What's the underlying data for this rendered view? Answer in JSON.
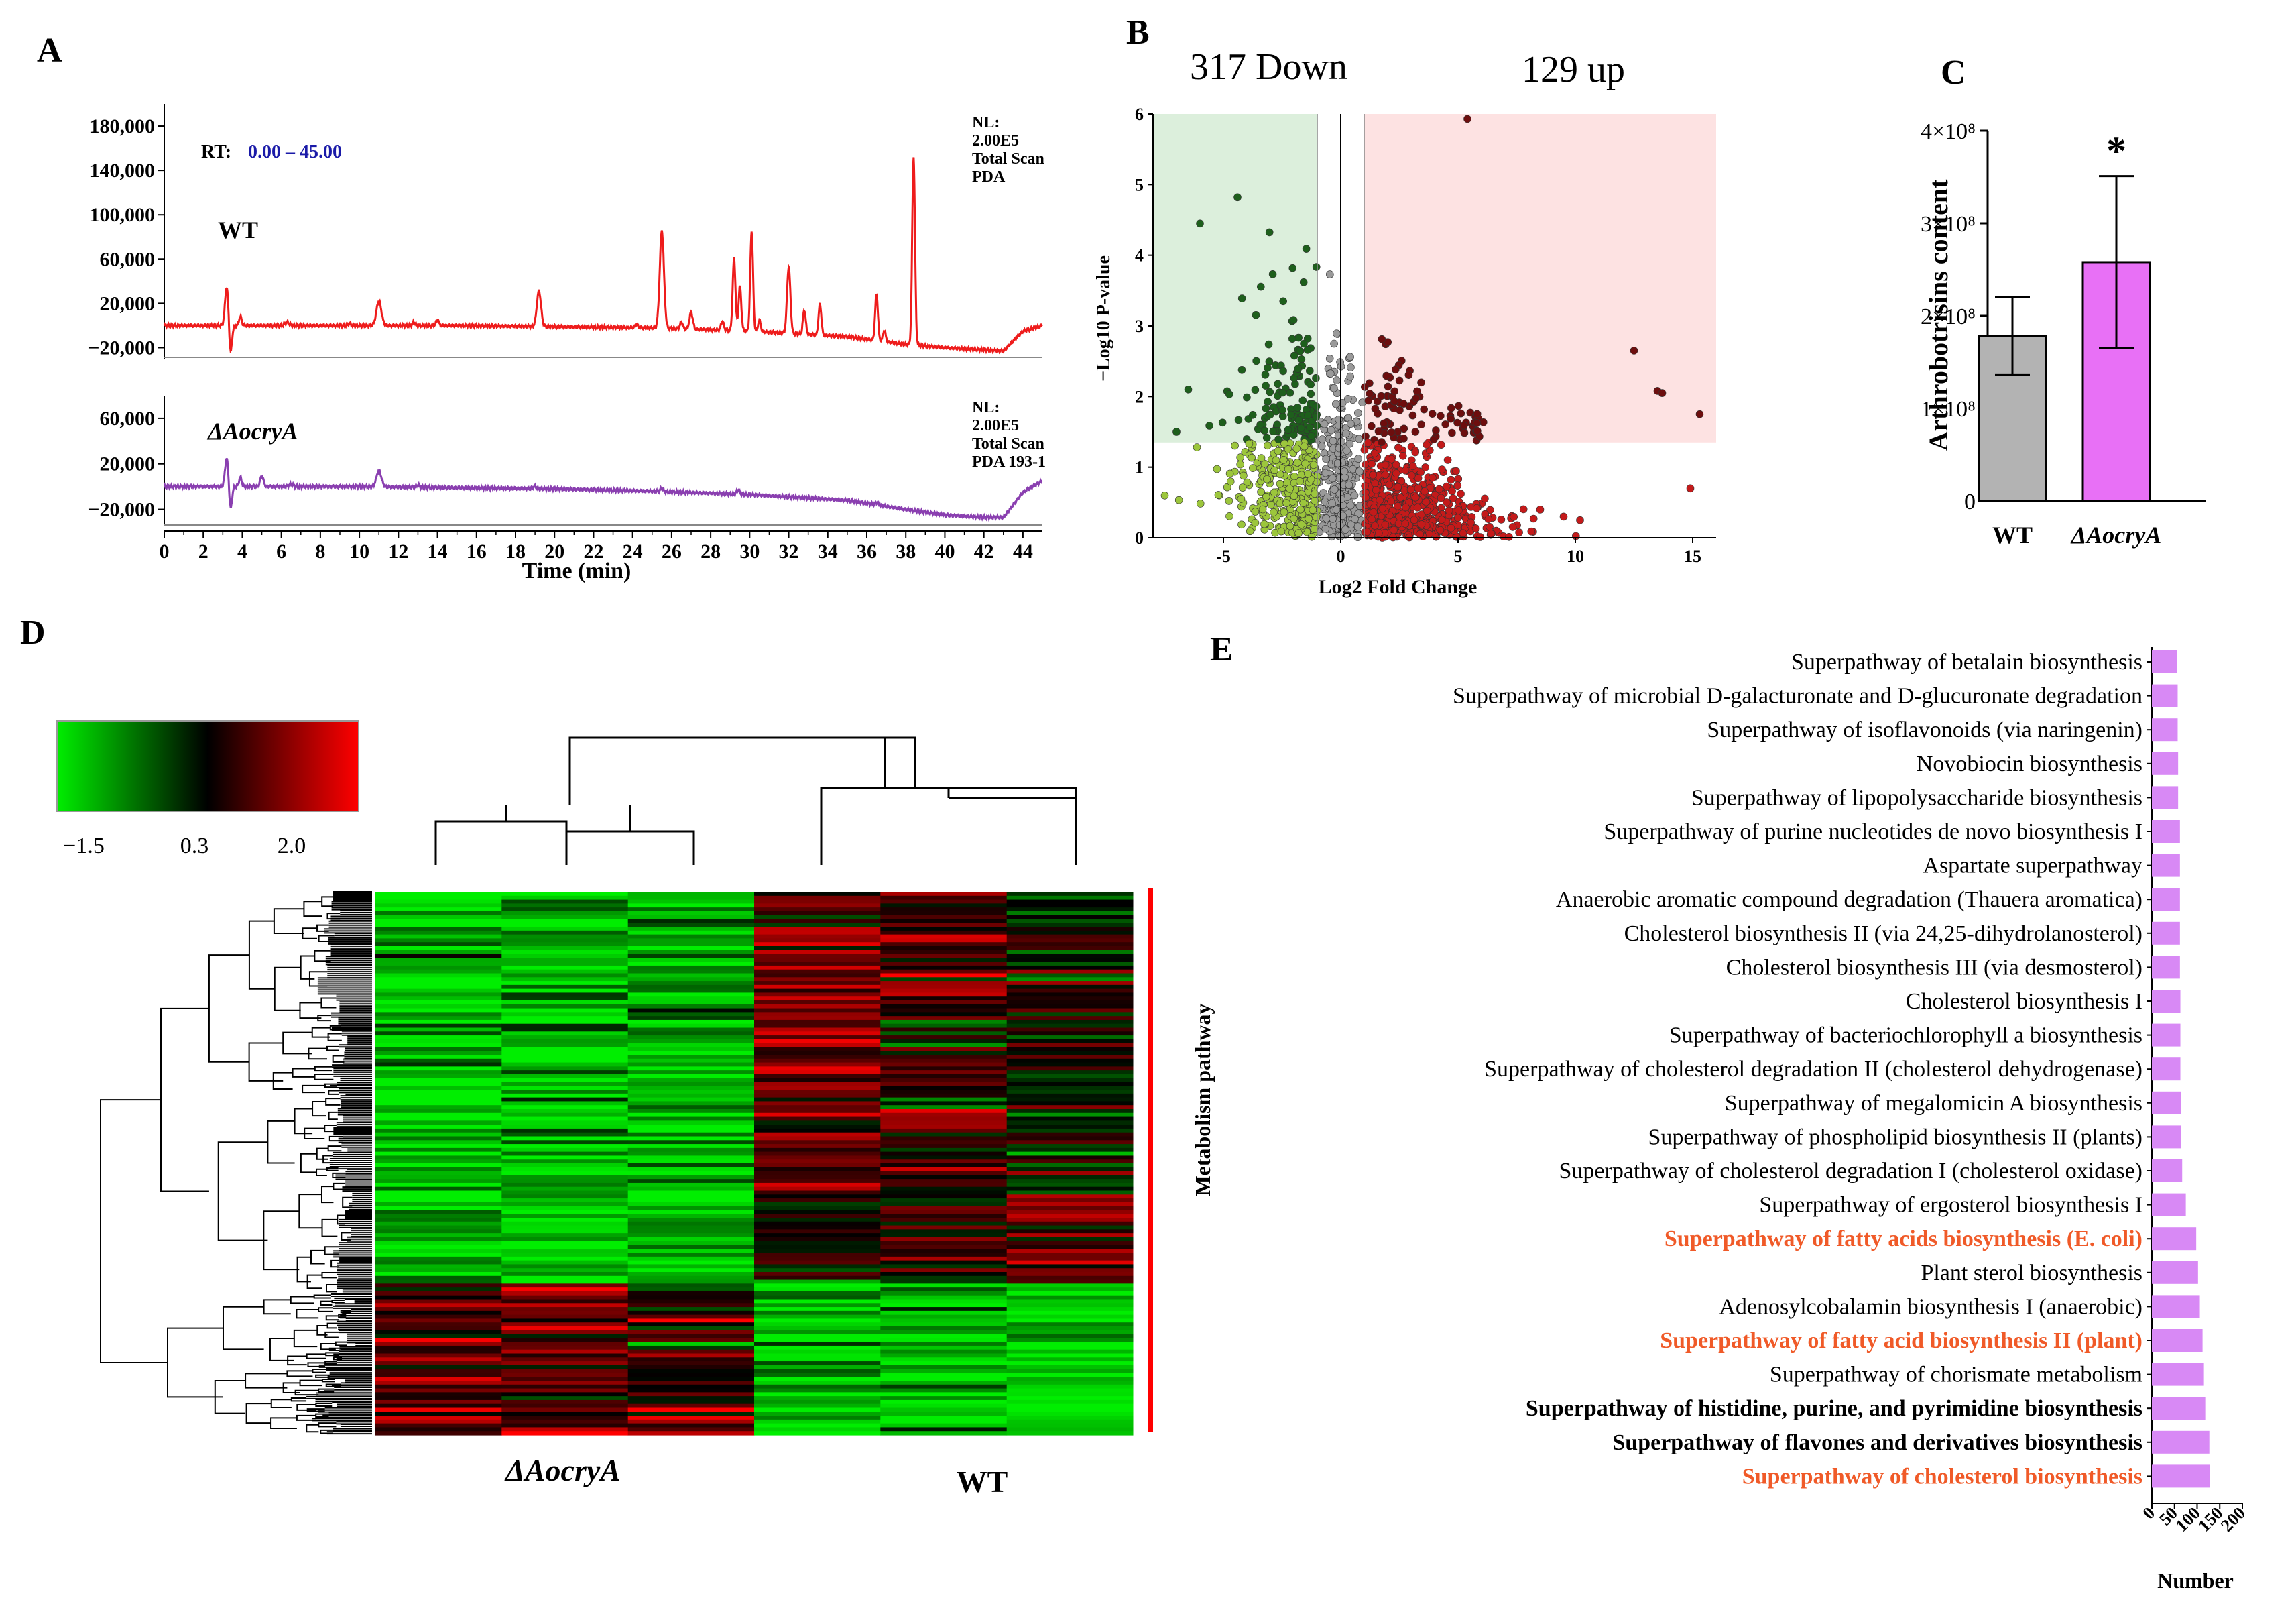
{
  "figure_title": "Multi-panel figure: metabolite profiling of WT and ΔAocryA",
  "panels": {
    "a": "A",
    "b": "B",
    "c": "C",
    "d": "D",
    "e": "E"
  },
  "colors": {
    "wt_trace": "#ee1c1c",
    "mutant_trace": "#8a3fb0",
    "up_point": "#c41a1a",
    "up_sig_point": "#6d0e0e",
    "down_point": "#9cc63c",
    "down_sig_point": "#1e5f1c",
    "ns_point": "#9a9a9a",
    "up_zone": "#fde2e2",
    "down_zone": "#dcefdc",
    "bar_wt": "#b3b3b3",
    "bar_mutant": "#e870f6",
    "bar_e": "#d889f5",
    "highlight_text": "#f05a28",
    "heat_low": "#00ee00",
    "heat_mid": "#000000",
    "heat_high": "#ff0000"
  },
  "chart_data": [
    {
      "id": "A",
      "type": "line",
      "title": "",
      "xlabel": "Time (min)",
      "ylabel": "",
      "xlim": [
        0,
        45
      ],
      "x_ticks": [
        0,
        2,
        4,
        6,
        8,
        10,
        12,
        14,
        16,
        18,
        20,
        22,
        24,
        26,
        28,
        30,
        32,
        34,
        36,
        38,
        40,
        42,
        44
      ],
      "rt_label": "RT:",
      "rt_range": "0.00 – 45.00",
      "series": [
        {
          "name": "WT",
          "ylim": [
            -30000,
            200000
          ],
          "y_ticks": [
            "180,000",
            "140,000",
            "100,000",
            "60,000",
            "20,000",
            "−20,000"
          ],
          "y_tick_values": [
            180000,
            140000,
            100000,
            60000,
            20000,
            -20000
          ],
          "note_lines": [
            "NL:",
            "2.00E5",
            "Total Scan",
            "PDA"
          ],
          "baseline": [
            [
              0,
              0
            ],
            [
              3,
              0
            ],
            [
              10,
              0
            ],
            [
              15,
              0
            ],
            [
              20,
              -1000
            ],
            [
              25,
              -2000
            ],
            [
              30,
              -5000
            ],
            [
              35,
              -10000
            ],
            [
              38,
              -17000
            ],
            [
              40,
              -20000
            ],
            [
              42,
              -22000
            ],
            [
              43,
              -23000
            ],
            [
              44,
              -5000
            ],
            [
              45,
              0
            ]
          ],
          "peaks": [
            [
              3.2,
              35000,
              0.12
            ],
            [
              3.4,
              -25000,
              0.1
            ],
            [
              3.9,
              8000,
              0.1
            ],
            [
              6.3,
              3000,
              0.15
            ],
            [
              9.5,
              2000,
              0.1
            ],
            [
              11,
              22000,
              0.18
            ],
            [
              12.8,
              3000,
              0.1
            ],
            [
              14,
              5000,
              0.1
            ],
            [
              19.2,
              32000,
              0.15
            ],
            [
              24.2,
              3000,
              0.1
            ],
            [
              25.5,
              88000,
              0.15
            ],
            [
              26.5,
              6000,
              0.1
            ],
            [
              27,
              15000,
              0.12
            ],
            [
              28.6,
              8000,
              0.1
            ],
            [
              29.2,
              65000,
              0.1
            ],
            [
              29.5,
              40000,
              0.1
            ],
            [
              30.1,
              90000,
              0.1
            ],
            [
              30.5,
              10000,
              0.1
            ],
            [
              32,
              60000,
              0.12
            ],
            [
              32.8,
              22000,
              0.1
            ],
            [
              33.6,
              28000,
              0.1
            ],
            [
              36.5,
              42000,
              0.1
            ],
            [
              36.9,
              10000,
              0.1
            ],
            [
              38.4,
              170000,
              0.1
            ]
          ]
        },
        {
          "name": "ΔAocryA",
          "ylim": [
            -35000,
            80000
          ],
          "y_ticks": [
            "60,000",
            "20,000",
            "−20,000"
          ],
          "y_tick_values": [
            60000,
            20000,
            -20000
          ],
          "note_lines": [
            "NL:",
            "2.00E5",
            "Total Scan",
            "PDA 193-1"
          ],
          "baseline": [
            [
              0,
              0
            ],
            [
              3,
              0
            ],
            [
              10,
              0
            ],
            [
              15,
              -1000
            ],
            [
              20,
              -2000
            ],
            [
              25,
              -4000
            ],
            [
              30,
              -7000
            ],
            [
              35,
              -12000
            ],
            [
              38,
              -20000
            ],
            [
              40,
              -25000
            ],
            [
              42,
              -27000
            ],
            [
              43,
              -27000
            ],
            [
              44,
              -5000
            ],
            [
              45,
              5000
            ]
          ],
          "peaks": [
            [
              3.2,
              25000,
              0.12
            ],
            [
              3.4,
              -20000,
              0.1
            ],
            [
              3.9,
              8000,
              0.1
            ],
            [
              5,
              9000,
              0.12
            ],
            [
              6.5,
              2000,
              0.15
            ],
            [
              11,
              14000,
              0.18
            ],
            [
              13,
              2000,
              0.1
            ],
            [
              19,
              2000,
              0.1
            ],
            [
              25.5,
              3000,
              0.1
            ],
            [
              29.4,
              4000,
              0.1
            ],
            [
              36.5,
              2000,
              0.1
            ]
          ]
        }
      ]
    },
    {
      "id": "B",
      "type": "scatter",
      "title": "",
      "xlabel": "Log2 Fold Change",
      "ylabel": "−Log10 P-value",
      "xlim": [
        -8,
        16
      ],
      "ylim": [
        0,
        6
      ],
      "x_ticks": [
        -5,
        0,
        5,
        10,
        15
      ],
      "y_ticks": [
        0,
        1,
        2,
        3,
        4,
        5,
        6
      ],
      "down_label": "317 Down",
      "up_label": "129 up",
      "fc_threshold": 1,
      "p_threshold": 1.35,
      "highlight_points": [
        [
          -6,
          4.45
        ],
        [
          -4.4,
          4.82
        ],
        [
          -7,
          1.5
        ],
        [
          -6.5,
          2.1
        ],
        [
          -7.5,
          0.6
        ],
        [
          5.4,
          5.93
        ],
        [
          12.5,
          2.65
        ],
        [
          13.5,
          2.08
        ],
        [
          13.7,
          2.05
        ],
        [
          15.3,
          1.75
        ],
        [
          14.9,
          0.7
        ],
        [
          10.2,
          0.25
        ],
        [
          9.5,
          0.3
        ],
        [
          8.5,
          0.4
        ]
      ]
    },
    {
      "id": "C",
      "type": "bar",
      "title": "",
      "xlabel": "",
      "ylabel": "Arthrobotrisins content",
      "categories": [
        "WT",
        "ΔAocryA"
      ],
      "values": [
        178000000.0,
        258000000.0
      ],
      "errors": [
        42000000.0,
        93000000.0
      ],
      "ylim": [
        0,
        400000000.0
      ],
      "y_ticks": [
        "0",
        "1×10⁸",
        "2×10⁸",
        "3×10⁸",
        "4×10⁸"
      ],
      "significance": "*"
    },
    {
      "id": "D",
      "type": "heatmap",
      "title": "",
      "scale_min": "−1.5",
      "scale_mid": "0.3",
      "scale_max": "2.0",
      "group_labels": [
        "ΔAocryA",
        "WT"
      ],
      "side_label": "Metabolism pathway",
      "columns": 6,
      "blocks": [
        {
          "start": 0.0,
          "end": 0.55,
          "col_means": [
            -1.2,
            -1.1,
            -1.2,
            1.0,
            0.6,
            0.2
          ]
        },
        {
          "start": 0.55,
          "end": 0.72,
          "col_means": [
            -1.1,
            -1.0,
            -1.0,
            0.4,
            0.5,
            0.9
          ]
        },
        {
          "start": 0.72,
          "end": 1.0,
          "col_means": [
            1.0,
            0.9,
            0.6,
            -1.2,
            -1.1,
            -1.2
          ]
        }
      ]
    },
    {
      "id": "E",
      "type": "bar",
      "orientation": "horizontal",
      "title": "",
      "xlabel": "Number",
      "xlim": [
        0,
        200
      ],
      "x_ticks": [
        0,
        50,
        100,
        150,
        200
      ],
      "categories": [
        "Superpathway of betalain biosynthesis",
        "Superpathway of microbial D-galacturonate and D-glucuronate degradation",
        "Superpathway of isoflavonoids (via naringenin)",
        "Novobiocin biosynthesis",
        "Superpathway of lipopolysaccharide biosynthesis",
        "Superpathway of purine nucleotides de novo biosynthesis I",
        "Aspartate superpathway",
        "Anaerobic aromatic compound degradation (Thauera aromatica)",
        "Cholesterol biosynthesis II (via 24,25-dihydrolanosterol)",
        "Cholesterol biosynthesis III (via desmosterol)",
        "Cholesterol biosynthesis I",
        "Superpathway of bacteriochlorophyll a biosynthesis",
        "Superpathway of cholesterol degradation II (cholesterol dehydrogenase)",
        "Superpathway of megalomicin A biosynthesis",
        "Superpathway of phospholipid biosynthesis II (plants)",
        "Superpathway of cholesterol degradation I (cholesterol oxidase)",
        "Superpathway of ergosterol biosynthesis I",
        "Superpathway of fatty acids biosynthesis (E. coli)",
        "Plant sterol biosynthesis",
        "Adenosylcobalamin biosynthesis I (anaerobic)",
        "Superpathway of fatty acid biosynthesis II (plant)",
        "Superpathway of chorismate metabolism",
        "Superpathway of histidine, purine, and pyrimidine biosynthesis",
        "Superpathway of flavones and derivatives biosynthesis",
        "Superpathway of cholesterol biosynthesis"
      ],
      "values": [
        56,
        57,
        57,
        58,
        58,
        62,
        62,
        62,
        62,
        62,
        63,
        63,
        63,
        64,
        65,
        67,
        75,
        98,
        102,
        106,
        112,
        115,
        118,
        127,
        128
      ],
      "styles": [
        "n",
        "n",
        "n",
        "n",
        "n",
        "n",
        "n",
        "n",
        "n",
        "n",
        "n",
        "n",
        "n",
        "n",
        "n",
        "n",
        "n",
        "h",
        "n",
        "n",
        "h",
        "n",
        "b",
        "b",
        "h"
      ]
    }
  ]
}
